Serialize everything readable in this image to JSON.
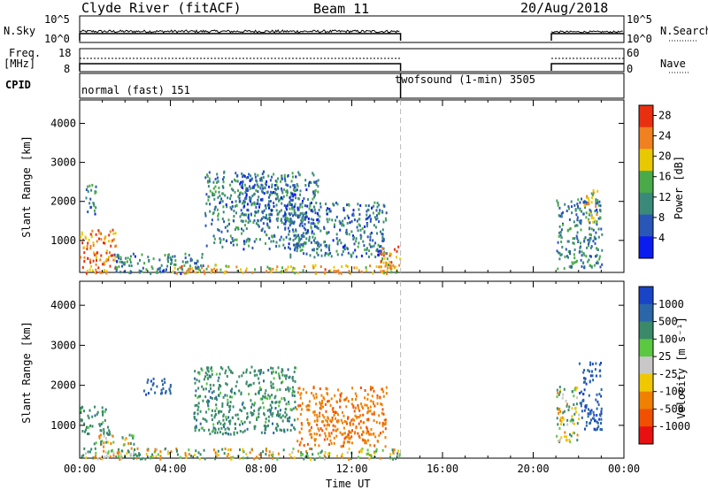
{
  "header": {
    "station": "Clyde River (fitACF)",
    "beam": "Beam 11",
    "date": "20/Aug/2018"
  },
  "status_panels": {
    "nsky_label": "N.Sky",
    "nsky_ticks": [
      "10^5",
      "10^0"
    ],
    "nsearch_label": "N.Search",
    "nsearch_ticks": [
      "10^5",
      "10^0"
    ],
    "freq_label": "Freq.",
    "freq_unit": "[MHz]",
    "freq_ticks": [
      "18",
      "8"
    ],
    "nave_label": "Nave",
    "nave_ticks": [
      "60",
      "0"
    ],
    "cpid_label": "CPID",
    "cpid_modes": [
      {
        "name": "normal (fast) 151",
        "start": "00:00",
        "end": "14:10"
      },
      {
        "name": "twofsound (1-min) 3505",
        "start": "14:10",
        "end": "24:00"
      }
    ]
  },
  "time_axis": {
    "label": "Time UT",
    "ticks": [
      "00:00",
      "04:00",
      "08:00",
      "12:00",
      "16:00",
      "20:00",
      "00:00"
    ]
  },
  "chart_data": [
    {
      "type": "heatmap",
      "panel": "power",
      "ylabel": "Slant Range [km]",
      "y_ticks": [
        1000,
        2000,
        3000,
        4000
      ],
      "ylim": [
        180,
        4600
      ],
      "xlim_hours": [
        0,
        24
      ],
      "colorbar_label": "Power [dB]",
      "colorbar_ticks": [
        4,
        8,
        12,
        16,
        20,
        24,
        28
      ],
      "colorbar_range": [
        0,
        30
      ],
      "colorbar_colors": [
        "#0a1cf0",
        "#2a56b8",
        "#3a8a7a",
        "#4aaa4a",
        "#e8c800",
        "#f08020",
        "#e83010"
      ],
      "data_gap_hours": [
        14.15,
        20.8
      ],
      "scatter_regions": [
        {
          "t": [
            0.0,
            1.6
          ],
          "range_km": [
            180,
            1300
          ],
          "dominant_db": 24
        },
        {
          "t": [
            0.2,
            0.7
          ],
          "range_km": [
            1700,
            2500
          ],
          "dominant_db": 10
        },
        {
          "t": [
            1.5,
            5.5
          ],
          "range_km": [
            180,
            700
          ],
          "dominant_db": 10
        },
        {
          "t": [
            4.0,
            14.1
          ],
          "range_km": [
            180,
            400
          ],
          "dominant_db": 20
        },
        {
          "t": [
            5.5,
            10.5
          ],
          "range_km": [
            800,
            2800
          ],
          "dominant_db": 10
        },
        {
          "t": [
            7.0,
            9.5
          ],
          "range_km": [
            1500,
            2700
          ],
          "dominant_db": 8
        },
        {
          "t": [
            9.0,
            13.5
          ],
          "range_km": [
            600,
            2000
          ],
          "dominant_db": 9
        },
        {
          "t": [
            13.2,
            14.1
          ],
          "range_km": [
            180,
            900
          ],
          "dominant_db": 22
        },
        {
          "t": [
            21.0,
            23.0
          ],
          "range_km": [
            300,
            2100
          ],
          "dominant_db": 10
        },
        {
          "t": [
            22.2,
            22.8
          ],
          "range_km": [
            1500,
            2400
          ],
          "dominant_db": 20
        }
      ]
    },
    {
      "type": "heatmap",
      "panel": "velocity",
      "ylabel": "Slant Range [km]",
      "y_ticks": [
        1000,
        2000,
        3000,
        4000
      ],
      "ylim": [
        180,
        4600
      ],
      "xlim_hours": [
        0,
        24
      ],
      "colorbar_label": "Velocity [m s⁻¹]",
      "colorbar_ticks": [
        1000,
        500,
        100,
        25,
        -25,
        -100,
        -500,
        -1000
      ],
      "colorbar_colors": [
        "#1a44c8",
        "#2a66a8",
        "#3a8a6a",
        "#5ac840",
        "#c8c8c8",
        "#f0c800",
        "#f08000",
        "#f05000",
        "#e81010"
      ],
      "data_gap_hours": [
        14.15,
        20.8
      ],
      "scatter_regions": [
        {
          "t": [
            0.0,
            1.3
          ],
          "range_km": [
            800,
            1500
          ],
          "dominant_ms": 300
        },
        {
          "t": [
            0.6,
            2.5
          ],
          "range_km": [
            180,
            800
          ],
          "dominant_ms": 0
        },
        {
          "t": [
            2.8,
            4.0
          ],
          "range_km": [
            1800,
            2200
          ],
          "dominant_ms": 800
        },
        {
          "t": [
            5.0,
            9.5
          ],
          "range_km": [
            800,
            2500
          ],
          "dominant_ms": 300
        },
        {
          "t": [
            9.5,
            13.5
          ],
          "range_km": [
            500,
            2000
          ],
          "dominant_ms": -400
        },
        {
          "t": [
            0.0,
            14.1
          ],
          "range_km": [
            180,
            450
          ],
          "dominant_ms": 20
        },
        {
          "t": [
            21.0,
            22.0
          ],
          "range_km": [
            600,
            2000
          ],
          "dominant_ms": 50
        },
        {
          "t": [
            22.0,
            23.0
          ],
          "range_km": [
            900,
            2600
          ],
          "dominant_ms": 900
        }
      ]
    }
  ]
}
